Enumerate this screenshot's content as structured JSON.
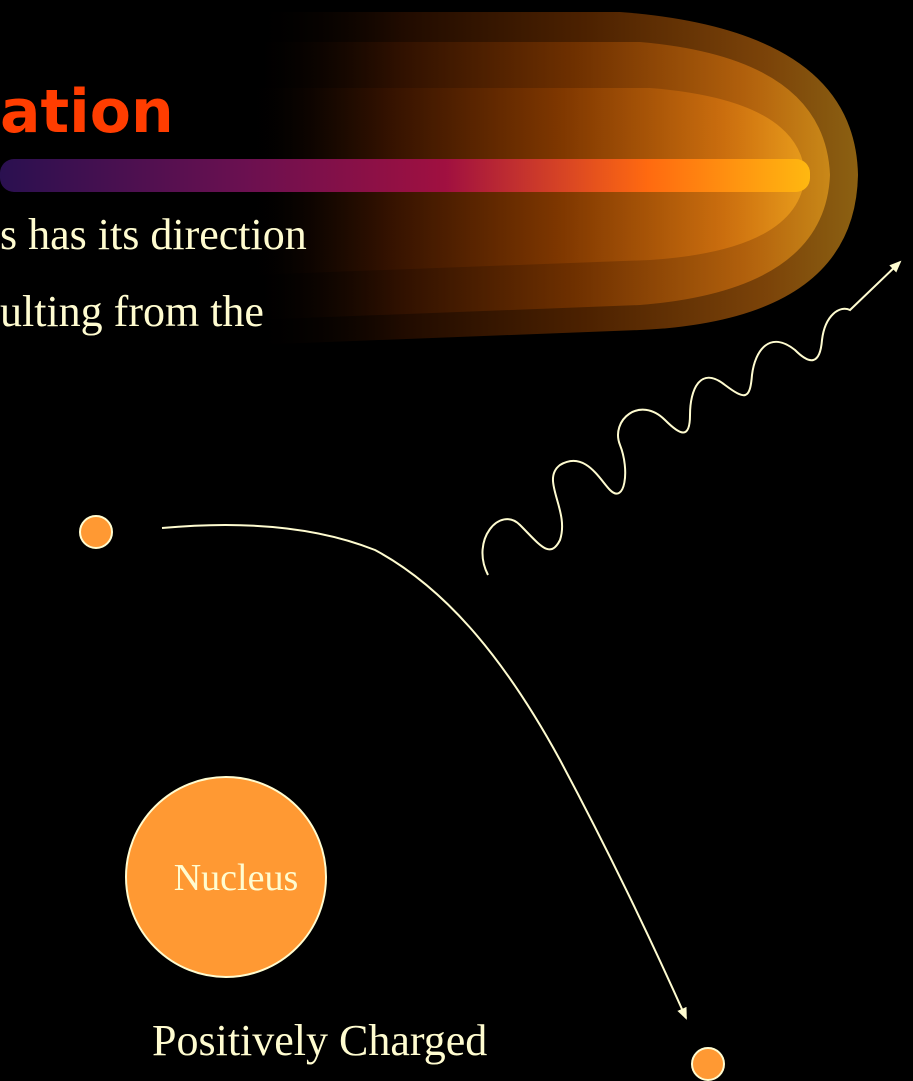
{
  "slide": {
    "title_fragment": "ation",
    "body_line_1": "s has its direction",
    "body_line_2": "ulting from the",
    "nucleus_label": "Nucleus",
    "nucleus_caption": "Positively Charged"
  },
  "colors": {
    "background": "#000000",
    "title": "#ff3d00",
    "text": "#fffcd0",
    "particle_fill": "#ff9933",
    "line": "#fffcd0",
    "decor_orange": "#e87a10"
  },
  "icons": {
    "incoming_particle": "filled-circle",
    "deflected_particle": "filled-circle",
    "nucleus": "filled-circle",
    "emitted_radiation": "wavy-arrow"
  }
}
